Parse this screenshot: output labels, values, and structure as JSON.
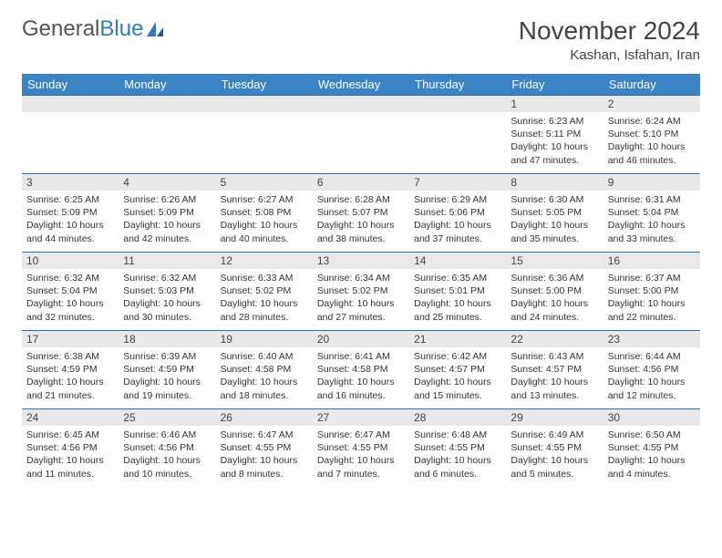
{
  "logo": {
    "text1": "General",
    "text2": "Blue"
  },
  "header": {
    "month_title": "November 2024",
    "location": "Kashan, Isfahan, Iran"
  },
  "colors": {
    "header_bg": "#3a84c5",
    "header_text": "#ffffff",
    "daynum_bg": "#e9e9e9",
    "daynum_border": "#2f6fa8",
    "body_text": "#333333",
    "logo_gray": "#555555",
    "logo_blue": "#2f7bbf"
  },
  "weekdays": [
    "Sunday",
    "Monday",
    "Tuesday",
    "Wednesday",
    "Thursday",
    "Friday",
    "Saturday"
  ],
  "weeks": [
    [
      null,
      null,
      null,
      null,
      null,
      {
        "n": "1",
        "sunrise": "Sunrise: 6:23 AM",
        "sunset": "Sunset: 5:11 PM",
        "daylight": "Daylight: 10 hours and 47 minutes."
      },
      {
        "n": "2",
        "sunrise": "Sunrise: 6:24 AM",
        "sunset": "Sunset: 5:10 PM",
        "daylight": "Daylight: 10 hours and 46 minutes."
      }
    ],
    [
      {
        "n": "3",
        "sunrise": "Sunrise: 6:25 AM",
        "sunset": "Sunset: 5:09 PM",
        "daylight": "Daylight: 10 hours and 44 minutes."
      },
      {
        "n": "4",
        "sunrise": "Sunrise: 6:26 AM",
        "sunset": "Sunset: 5:09 PM",
        "daylight": "Daylight: 10 hours and 42 minutes."
      },
      {
        "n": "5",
        "sunrise": "Sunrise: 6:27 AM",
        "sunset": "Sunset: 5:08 PM",
        "daylight": "Daylight: 10 hours and 40 minutes."
      },
      {
        "n": "6",
        "sunrise": "Sunrise: 6:28 AM",
        "sunset": "Sunset: 5:07 PM",
        "daylight": "Daylight: 10 hours and 38 minutes."
      },
      {
        "n": "7",
        "sunrise": "Sunrise: 6:29 AM",
        "sunset": "Sunset: 5:06 PM",
        "daylight": "Daylight: 10 hours and 37 minutes."
      },
      {
        "n": "8",
        "sunrise": "Sunrise: 6:30 AM",
        "sunset": "Sunset: 5:05 PM",
        "daylight": "Daylight: 10 hours and 35 minutes."
      },
      {
        "n": "9",
        "sunrise": "Sunrise: 6:31 AM",
        "sunset": "Sunset: 5:04 PM",
        "daylight": "Daylight: 10 hours and 33 minutes."
      }
    ],
    [
      {
        "n": "10",
        "sunrise": "Sunrise: 6:32 AM",
        "sunset": "Sunset: 5:04 PM",
        "daylight": "Daylight: 10 hours and 32 minutes."
      },
      {
        "n": "11",
        "sunrise": "Sunrise: 6:32 AM",
        "sunset": "Sunset: 5:03 PM",
        "daylight": "Daylight: 10 hours and 30 minutes."
      },
      {
        "n": "12",
        "sunrise": "Sunrise: 6:33 AM",
        "sunset": "Sunset: 5:02 PM",
        "daylight": "Daylight: 10 hours and 28 minutes."
      },
      {
        "n": "13",
        "sunrise": "Sunrise: 6:34 AM",
        "sunset": "Sunset: 5:02 PM",
        "daylight": "Daylight: 10 hours and 27 minutes."
      },
      {
        "n": "14",
        "sunrise": "Sunrise: 6:35 AM",
        "sunset": "Sunset: 5:01 PM",
        "daylight": "Daylight: 10 hours and 25 minutes."
      },
      {
        "n": "15",
        "sunrise": "Sunrise: 6:36 AM",
        "sunset": "Sunset: 5:00 PM",
        "daylight": "Daylight: 10 hours and 24 minutes."
      },
      {
        "n": "16",
        "sunrise": "Sunrise: 6:37 AM",
        "sunset": "Sunset: 5:00 PM",
        "daylight": "Daylight: 10 hours and 22 minutes."
      }
    ],
    [
      {
        "n": "17",
        "sunrise": "Sunrise: 6:38 AM",
        "sunset": "Sunset: 4:59 PM",
        "daylight": "Daylight: 10 hours and 21 minutes."
      },
      {
        "n": "18",
        "sunrise": "Sunrise: 6:39 AM",
        "sunset": "Sunset: 4:59 PM",
        "daylight": "Daylight: 10 hours and 19 minutes."
      },
      {
        "n": "19",
        "sunrise": "Sunrise: 6:40 AM",
        "sunset": "Sunset: 4:58 PM",
        "daylight": "Daylight: 10 hours and 18 minutes."
      },
      {
        "n": "20",
        "sunrise": "Sunrise: 6:41 AM",
        "sunset": "Sunset: 4:58 PM",
        "daylight": "Daylight: 10 hours and 16 minutes."
      },
      {
        "n": "21",
        "sunrise": "Sunrise: 6:42 AM",
        "sunset": "Sunset: 4:57 PM",
        "daylight": "Daylight: 10 hours and 15 minutes."
      },
      {
        "n": "22",
        "sunrise": "Sunrise: 6:43 AM",
        "sunset": "Sunset: 4:57 PM",
        "daylight": "Daylight: 10 hours and 13 minutes."
      },
      {
        "n": "23",
        "sunrise": "Sunrise: 6:44 AM",
        "sunset": "Sunset: 4:56 PM",
        "daylight": "Daylight: 10 hours and 12 minutes."
      }
    ],
    [
      {
        "n": "24",
        "sunrise": "Sunrise: 6:45 AM",
        "sunset": "Sunset: 4:56 PM",
        "daylight": "Daylight: 10 hours and 11 minutes."
      },
      {
        "n": "25",
        "sunrise": "Sunrise: 6:46 AM",
        "sunset": "Sunset: 4:56 PM",
        "daylight": "Daylight: 10 hours and 10 minutes."
      },
      {
        "n": "26",
        "sunrise": "Sunrise: 6:47 AM",
        "sunset": "Sunset: 4:55 PM",
        "daylight": "Daylight: 10 hours and 8 minutes."
      },
      {
        "n": "27",
        "sunrise": "Sunrise: 6:47 AM",
        "sunset": "Sunset: 4:55 PM",
        "daylight": "Daylight: 10 hours and 7 minutes."
      },
      {
        "n": "28",
        "sunrise": "Sunrise: 6:48 AM",
        "sunset": "Sunset: 4:55 PM",
        "daylight": "Daylight: 10 hours and 6 minutes."
      },
      {
        "n": "29",
        "sunrise": "Sunrise: 6:49 AM",
        "sunset": "Sunset: 4:55 PM",
        "daylight": "Daylight: 10 hours and 5 minutes."
      },
      {
        "n": "30",
        "sunrise": "Sunrise: 6:50 AM",
        "sunset": "Sunset: 4:55 PM",
        "daylight": "Daylight: 10 hours and 4 minutes."
      }
    ]
  ]
}
